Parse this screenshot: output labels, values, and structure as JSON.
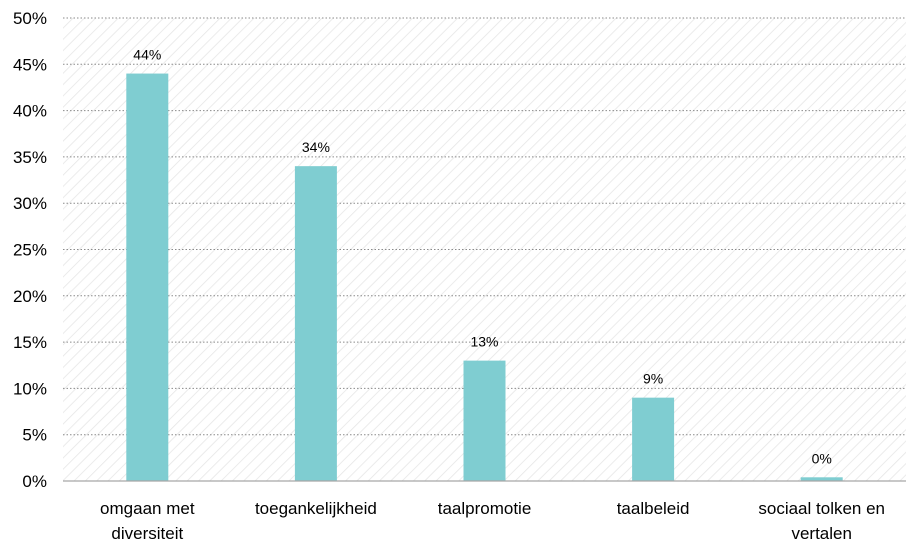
{
  "colors": {
    "bar": "#7fcdd1",
    "hatch": "#e6e6e6",
    "background": "#ffffff"
  },
  "chart_data": {
    "type": "bar",
    "title": "",
    "xlabel": "",
    "ylabel": "",
    "categories": [
      [
        "omgaan met",
        "diversiteit"
      ],
      [
        "toegankelijkheid"
      ],
      [
        "taalpromotie"
      ],
      [
        "taalbeleid"
      ],
      [
        "sociaal tolken en",
        "vertalen"
      ]
    ],
    "values": [
      44,
      34,
      13,
      9,
      0.4
    ],
    "data_labels": [
      "44%",
      "34%",
      "13%",
      "9%",
      "0%"
    ],
    "ylim": [
      0,
      50
    ],
    "yticks": [
      0,
      5,
      10,
      15,
      20,
      25,
      30,
      35,
      40,
      45,
      50
    ],
    "ytick_labels": [
      "0%",
      "5%",
      "10%",
      "15%",
      "20%",
      "25%",
      "30%",
      "35%",
      "40%",
      "45%",
      "50%"
    ],
    "grid": true,
    "legend": "none"
  }
}
